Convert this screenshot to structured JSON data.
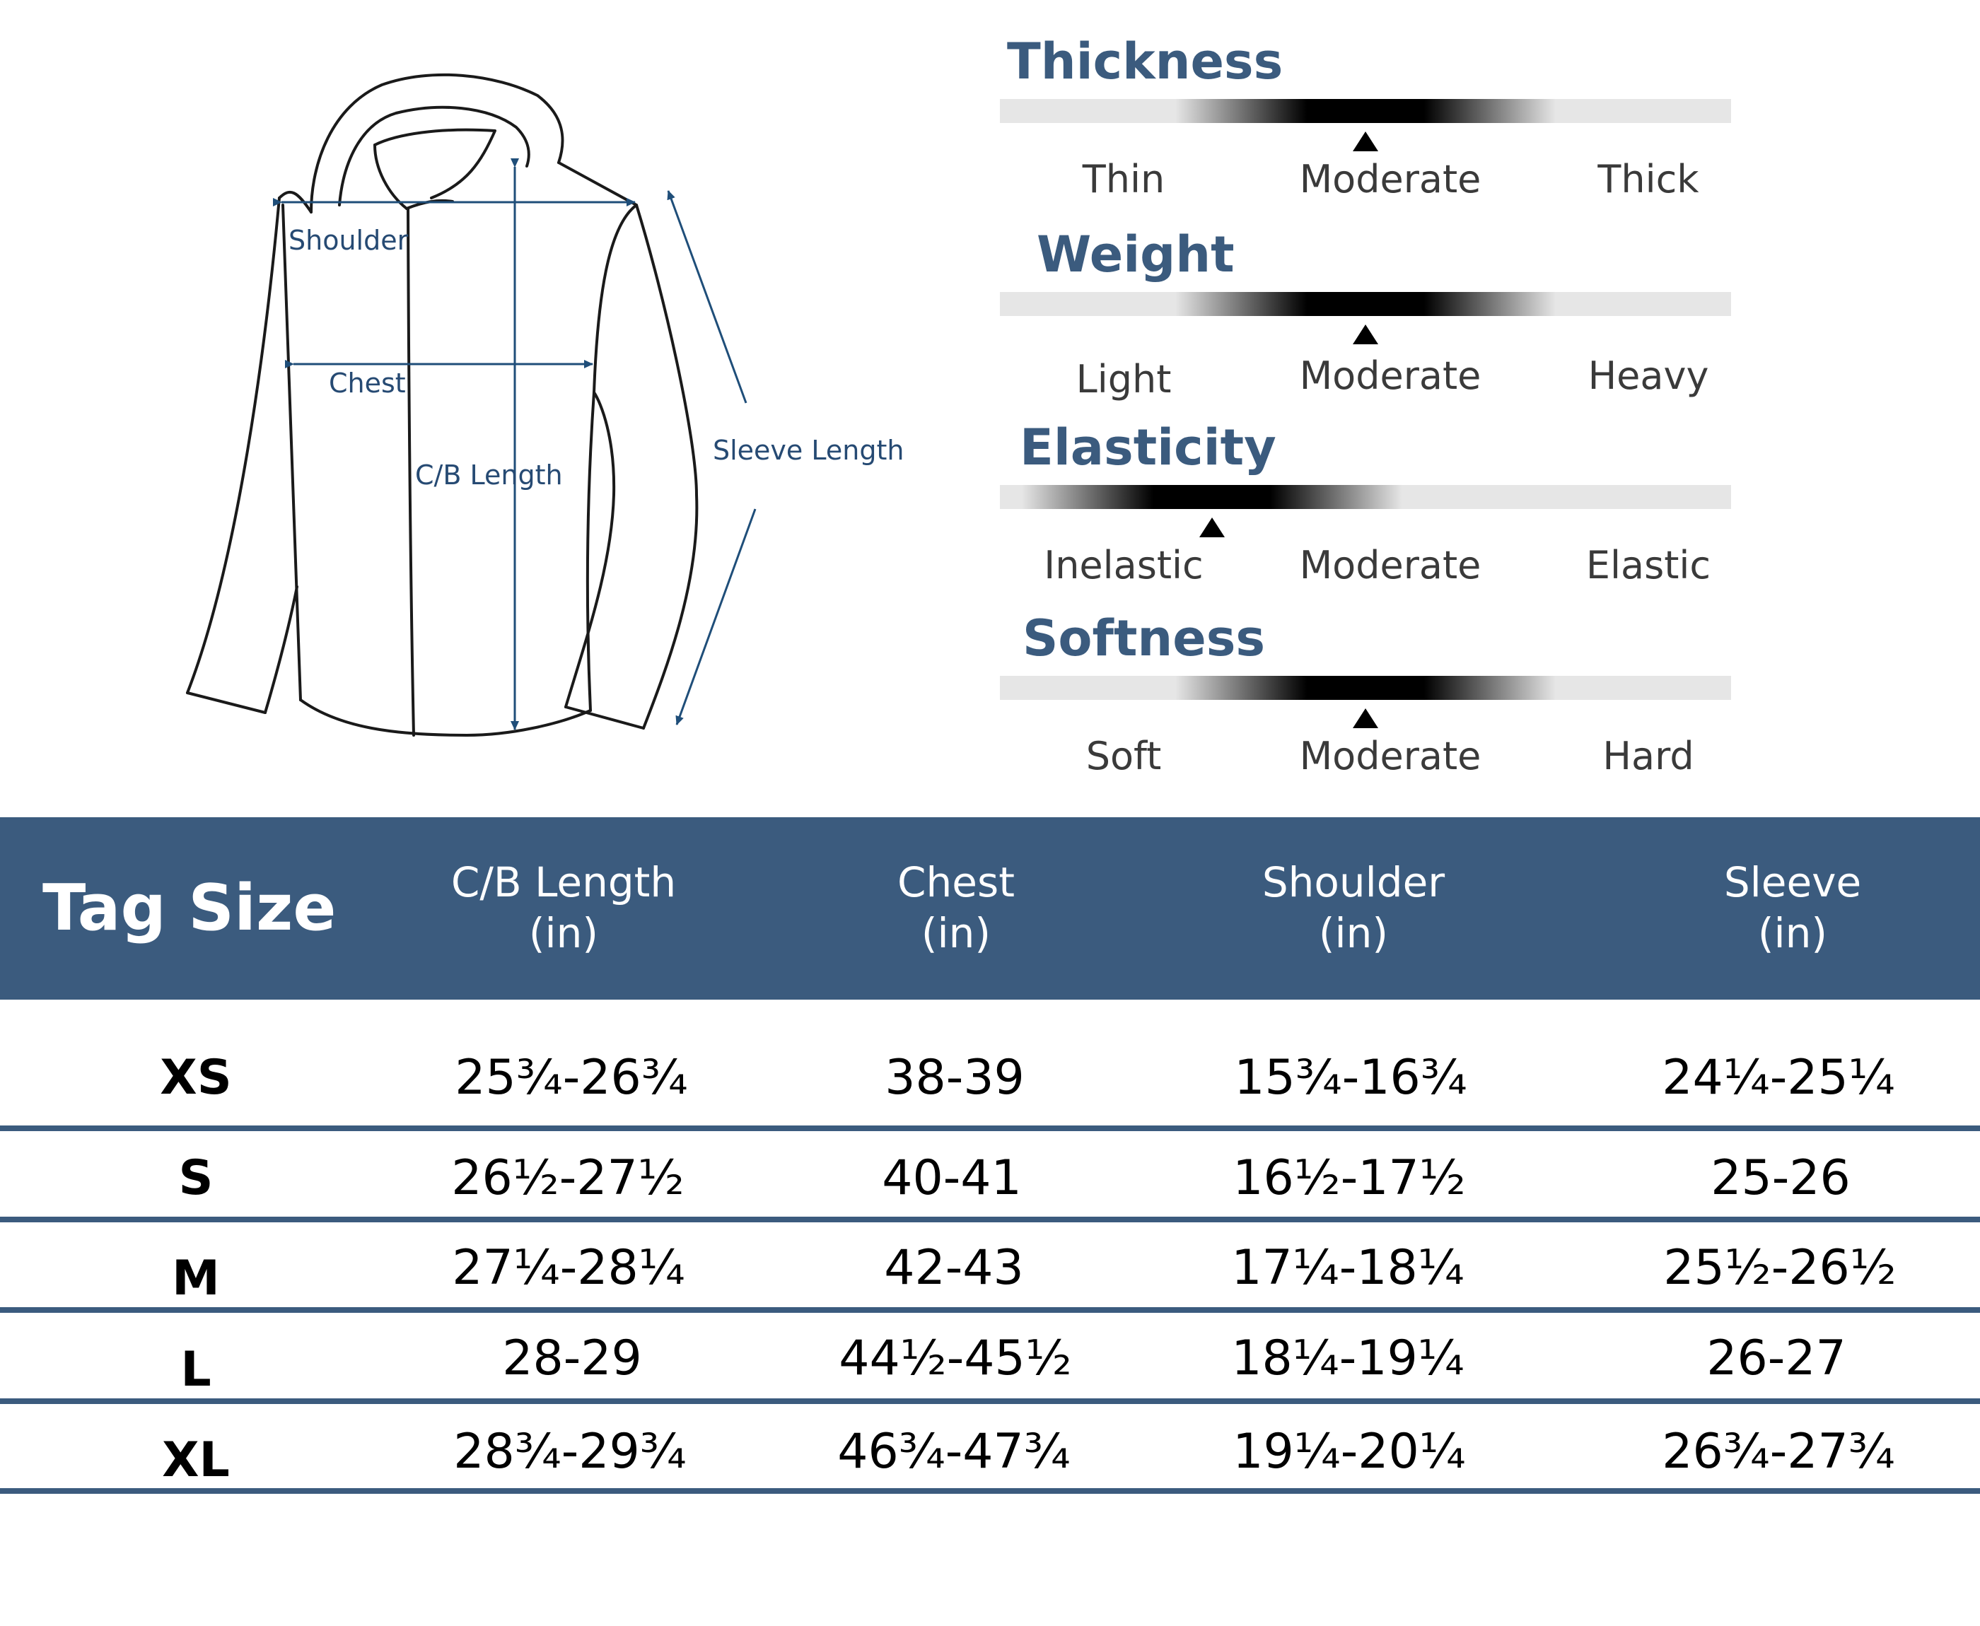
{
  "diagram": {
    "labels": {
      "shoulder": "Shoulder",
      "chest": "Chest",
      "cb_length": "C/B Length",
      "sleeve_length": "Sleeve Length"
    },
    "line_color": "#1f4e79"
  },
  "attributes": [
    {
      "title": "Thickness",
      "labels": [
        "Thin",
        "Moderate",
        "Thick"
      ],
      "level": 0.5
    },
    {
      "title": "Weight",
      "labels": [
        "Light",
        "Moderate",
        "Heavy"
      ],
      "level": 0.5
    },
    {
      "title": "Elasticity",
      "labels": [
        "Inelastic",
        "Moderate",
        "Elastic"
      ],
      "level": 0.29
    },
    {
      "title": "Softness",
      "labels": [
        "Soft",
        "Moderate",
        "Hard"
      ],
      "level": 0.5
    }
  ],
  "table": {
    "header": {
      "tag_size": "Tag Size",
      "columns": [
        {
          "name": "C/B Length",
          "unit": "(in)"
        },
        {
          "name": "Chest",
          "unit": "(in)"
        },
        {
          "name": "Shoulder",
          "unit": "(in)"
        },
        {
          "name": "Sleeve",
          "unit": "(in)"
        }
      ]
    },
    "rows": [
      {
        "size": "XS",
        "values": [
          "25¾-26¾",
          "38-39",
          "15¾-16¾",
          "24¼-25¼"
        ]
      },
      {
        "size": "S",
        "values": [
          "26½-27½",
          "40-41",
          "16½-17½",
          "25-26"
        ]
      },
      {
        "size": "M",
        "values": [
          "27¼-28¼",
          "42-43",
          "17¼-18¼",
          "25½-26½"
        ]
      },
      {
        "size": "L",
        "values": [
          "28-29",
          "44½-45½",
          "18¼-19¼",
          "26-27"
        ]
      },
      {
        "size": "XL",
        "values": [
          "28¾-29¾",
          "46¾-47¾",
          "19¼-20¼",
          "26¾-27¾"
        ]
      }
    ]
  },
  "colors": {
    "header_bg": "#3b5b7e",
    "title_blue": "#3b5b7e",
    "label_blue": "#264a73"
  }
}
